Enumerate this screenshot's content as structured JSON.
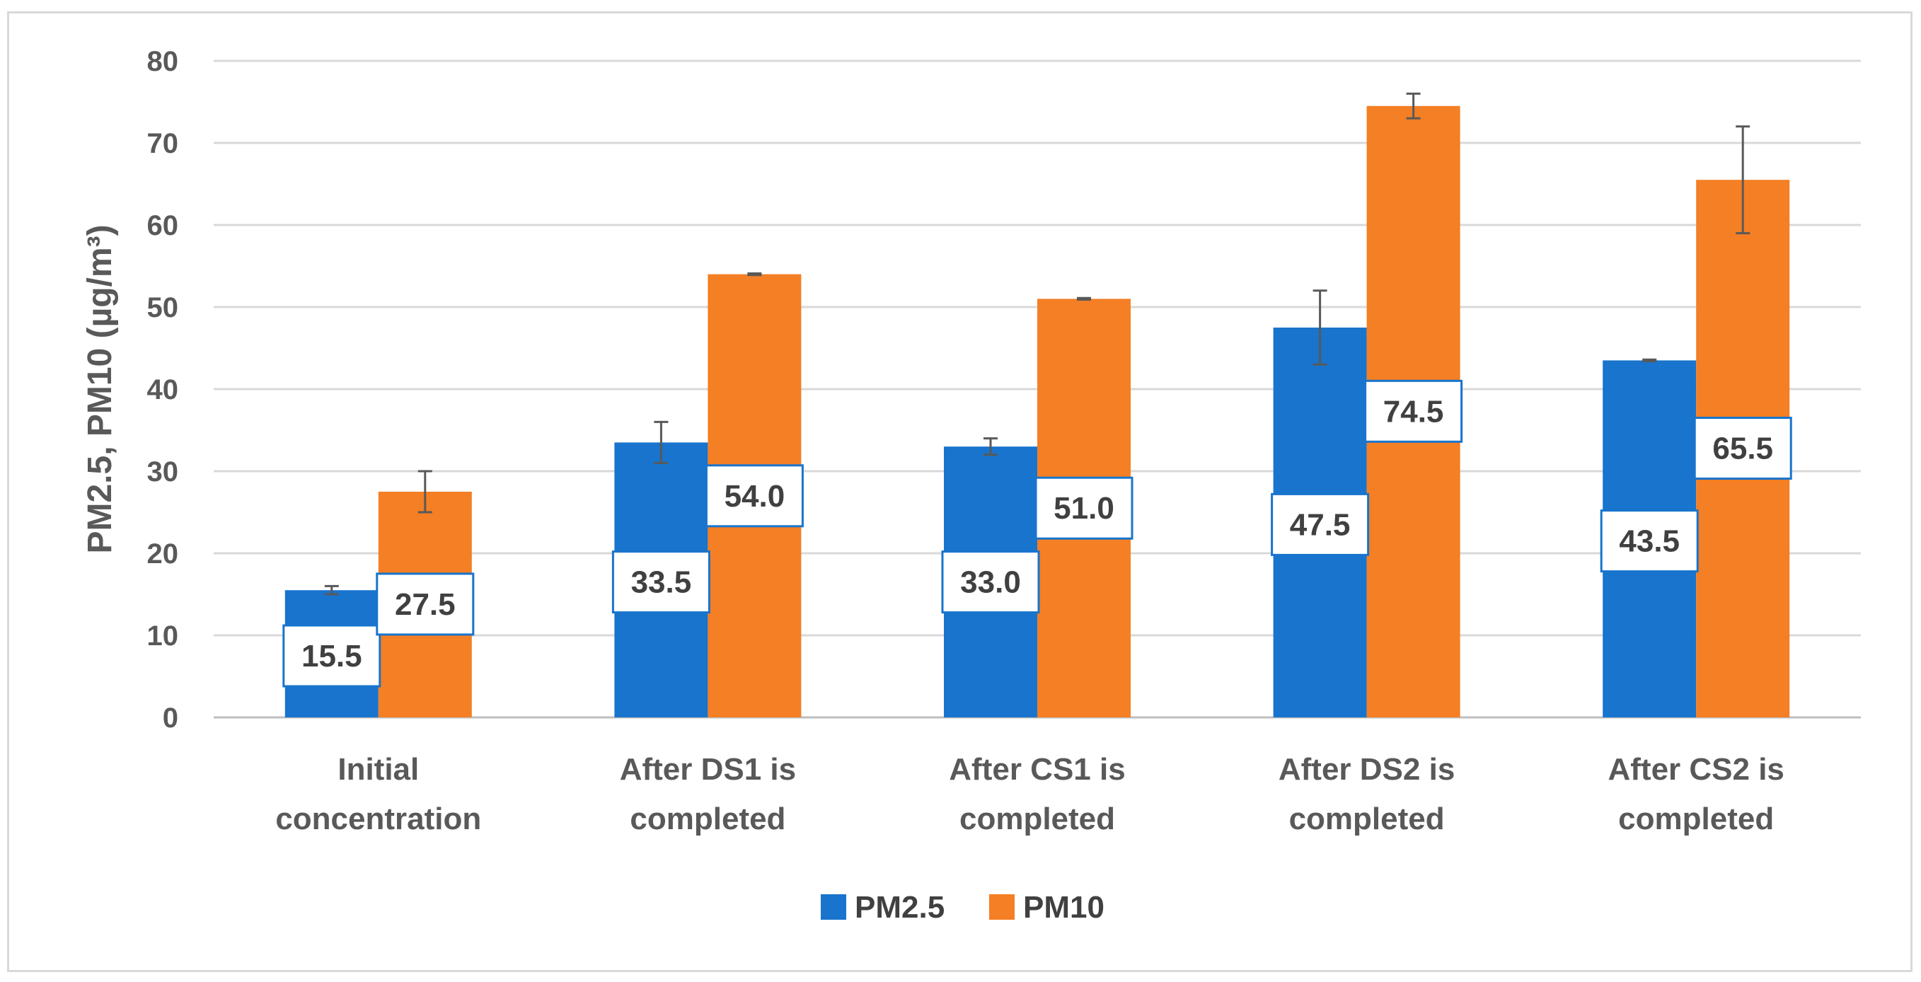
{
  "chart_data": {
    "type": "bar",
    "title": "",
    "xlabel": "",
    "ylabel": "PM2.5, PM10 (µg/m³)",
    "ylim": [
      0,
      80
    ],
    "yticks": [
      0,
      10,
      20,
      30,
      40,
      50,
      60,
      70,
      80
    ],
    "grid": true,
    "legend_position": "bottom",
    "categories": [
      [
        "Initial",
        "concentration"
      ],
      [
        "After DS1 is",
        "completed"
      ],
      [
        "After CS1 is",
        "completed"
      ],
      [
        "After DS2 is",
        "completed"
      ],
      [
        "After CS2 is",
        "completed"
      ]
    ],
    "series": [
      {
        "name": "PM2.5",
        "color": "#1874cd",
        "values": [
          15.5,
          33.5,
          33.0,
          47.5,
          43.5
        ],
        "labels": [
          "15.5",
          "33.5",
          "33.0",
          "47.5",
          "43.5"
        ],
        "error": [
          0.5,
          2.5,
          1.0,
          4.5,
          0.1
        ],
        "label_value_pos": [
          7.5,
          16.5,
          16.5,
          23.5,
          21.5
        ]
      },
      {
        "name": "PM10",
        "color": "#f47f24",
        "values": [
          27.5,
          54.0,
          51.0,
          74.5,
          65.5
        ],
        "labels": [
          "27.5",
          "54.0",
          "51.0",
          "74.5",
          "65.5"
        ],
        "error": [
          2.5,
          0.1,
          0.1,
          1.5,
          6.5
        ],
        "label_value_pos": [
          13.8,
          27.0,
          25.5,
          37.3,
          32.8
        ]
      }
    ]
  }
}
